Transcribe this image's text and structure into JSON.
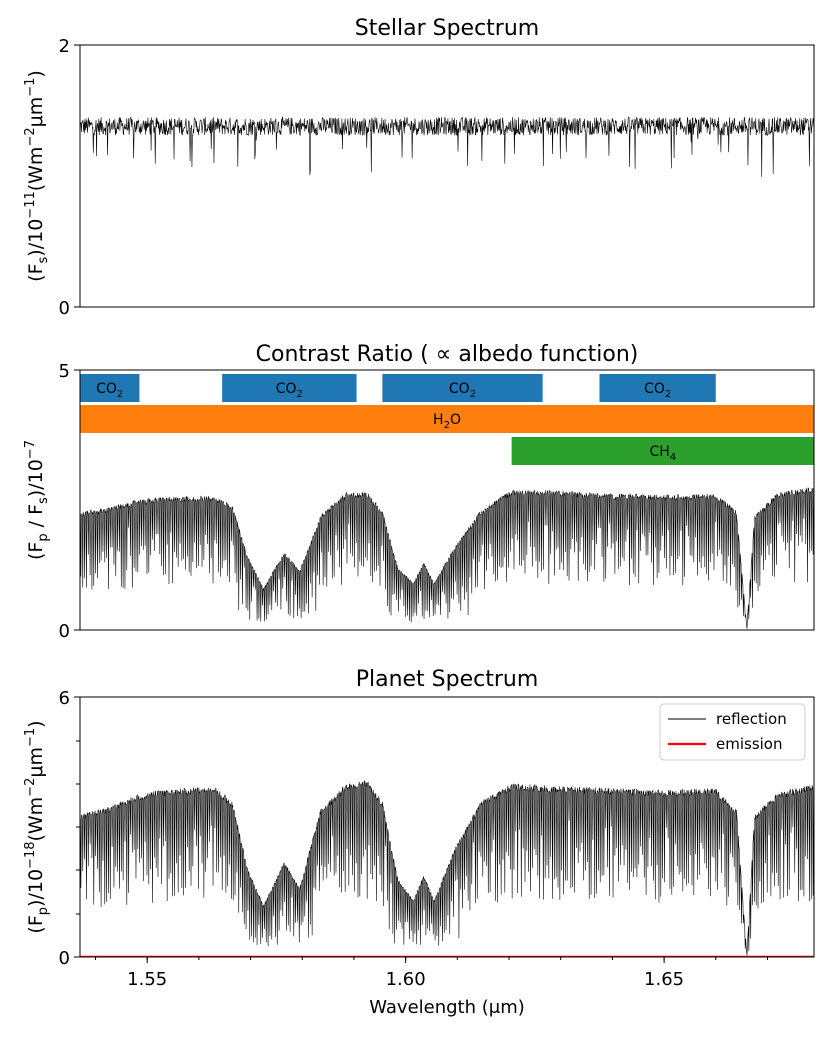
{
  "chart_data": [
    {
      "type": "line",
      "title": "Stellar Spectrum",
      "ylabel_parts": [
        "(F",
        "s",
        ")/10",
        "−11",
        "(Wm",
        "−2",
        "μm",
        "−1",
        ")"
      ],
      "xlim": [
        1.537,
        1.679
      ],
      "ylim": [
        0,
        2
      ],
      "y_ticks": [
        "0",
        "2"
      ],
      "series": [
        {
          "name": "stellar",
          "color": "#000000",
          "base": 1.38,
          "noise": 0.07,
          "line_depth": 0.35,
          "line_density": 0.035
        }
      ]
    },
    {
      "type": "line",
      "title": "Contrast Ratio ( ∝  albedo function)",
      "ylabel_parts": [
        "(F",
        "p",
        " / F",
        "s",
        ")/10",
        "−7"
      ],
      "xlim": [
        1.537,
        1.679
      ],
      "ylim": [
        0,
        5
      ],
      "y_ticks": [
        "0",
        "5"
      ],
      "bands": [
        {
          "label": "CO",
          "sub": "2",
          "x0": 1.537,
          "x1": 1.5485,
          "color": "#1f77b4",
          "row": 0
        },
        {
          "label": "CO",
          "sub": "2",
          "x0": 1.5645,
          "x1": 1.5905,
          "color": "#1f77b4",
          "row": 0
        },
        {
          "label": "CO",
          "sub": "2",
          "x0": 1.5955,
          "x1": 1.6265,
          "color": "#1f77b4",
          "row": 0
        },
        {
          "label": "CO",
          "sub": "2",
          "x0": 1.6375,
          "x1": 1.66,
          "color": "#1f77b4",
          "row": 0
        },
        {
          "label": "H",
          "sub": "2",
          "suffix": "O",
          "x0": 1.537,
          "x1": 1.679,
          "color": "#ff7f0e",
          "row": 1
        },
        {
          "label": "CH",
          "sub": "4",
          "x0": 1.6205,
          "x1": 1.679,
          "color": "#2ca02c",
          "row": 2
        }
      ],
      "series": [
        {
          "name": "contrast",
          "color": "#000000",
          "envelope": [
            [
              1.537,
              2.28
            ],
            [
              1.542,
              2.35
            ],
            [
              1.548,
              2.5
            ],
            [
              1.552,
              2.55
            ],
            [
              1.558,
              2.57
            ],
            [
              1.563,
              2.58
            ],
            [
              1.5665,
              2.4
            ],
            [
              1.5695,
              1.4
            ],
            [
              1.5725,
              0.8
            ],
            [
              1.5765,
              1.5
            ],
            [
              1.5795,
              1.15
            ],
            [
              1.5835,
              2.2
            ],
            [
              1.5885,
              2.65
            ],
            [
              1.5925,
              2.66
            ],
            [
              1.5955,
              2.3
            ],
            [
              1.5985,
              1.2
            ],
            [
              1.6015,
              0.9
            ],
            [
              1.6035,
              1.3
            ],
            [
              1.6055,
              0.9
            ],
            [
              1.6095,
              1.6
            ],
            [
              1.6145,
              2.3
            ],
            [
              1.6205,
              2.7
            ],
            [
              1.63,
              2.68
            ],
            [
              1.64,
              2.62
            ],
            [
              1.65,
              2.6
            ],
            [
              1.66,
              2.62
            ],
            [
              1.664,
              2.3
            ],
            [
              1.666,
              0.05
            ],
            [
              1.6675,
              2.2
            ],
            [
              1.672,
              2.65
            ],
            [
              1.679,
              2.75
            ]
          ]
        }
      ]
    },
    {
      "type": "line",
      "title": "Planet Spectrum",
      "ylabel_parts": [
        "(F",
        "p",
        ")/10",
        "−18",
        "(Wm",
        "−2",
        "μm",
        "−1",
        ")"
      ],
      "xlabel": "Wavelength (μm)",
      "xlim": [
        1.537,
        1.679
      ],
      "ylim": [
        0,
        6
      ],
      "x_ticks": [
        "1.55",
        "1.60",
        "1.65"
      ],
      "y_ticks": [
        "0",
        "6"
      ],
      "legend": {
        "position": "top-right",
        "entries": [
          {
            "label": "reflection",
            "color": "#555555"
          },
          {
            "label": "emission",
            "color": "#ff0000"
          }
        ]
      },
      "series": [
        {
          "name": "reflection",
          "color": "#000000",
          "envelope": [
            [
              1.537,
              3.3
            ],
            [
              1.542,
              3.45
            ],
            [
              1.548,
              3.75
            ],
            [
              1.552,
              3.85
            ],
            [
              1.558,
              3.9
            ],
            [
              1.563,
              3.95
            ],
            [
              1.5665,
              3.6
            ],
            [
              1.5695,
              2.0
            ],
            [
              1.5725,
              1.2
            ],
            [
              1.5765,
              2.2
            ],
            [
              1.5795,
              1.6
            ],
            [
              1.5835,
              3.4
            ],
            [
              1.5885,
              4.0
            ],
            [
              1.5925,
              4.1
            ],
            [
              1.5955,
              3.6
            ],
            [
              1.5985,
              1.8
            ],
            [
              1.6015,
              1.3
            ],
            [
              1.6035,
              1.9
            ],
            [
              1.6055,
              1.3
            ],
            [
              1.6095,
              2.5
            ],
            [
              1.6145,
              3.6
            ],
            [
              1.6205,
              4.0
            ],
            [
              1.63,
              3.95
            ],
            [
              1.64,
              3.9
            ],
            [
              1.65,
              3.85
            ],
            [
              1.66,
              3.9
            ],
            [
              1.664,
              3.4
            ],
            [
              1.666,
              0.05
            ],
            [
              1.6675,
              3.3
            ],
            [
              1.672,
              3.8
            ],
            [
              1.679,
              4.0
            ]
          ]
        },
        {
          "name": "emission",
          "color": "#ff0000",
          "constant": 0.01
        }
      ]
    }
  ]
}
